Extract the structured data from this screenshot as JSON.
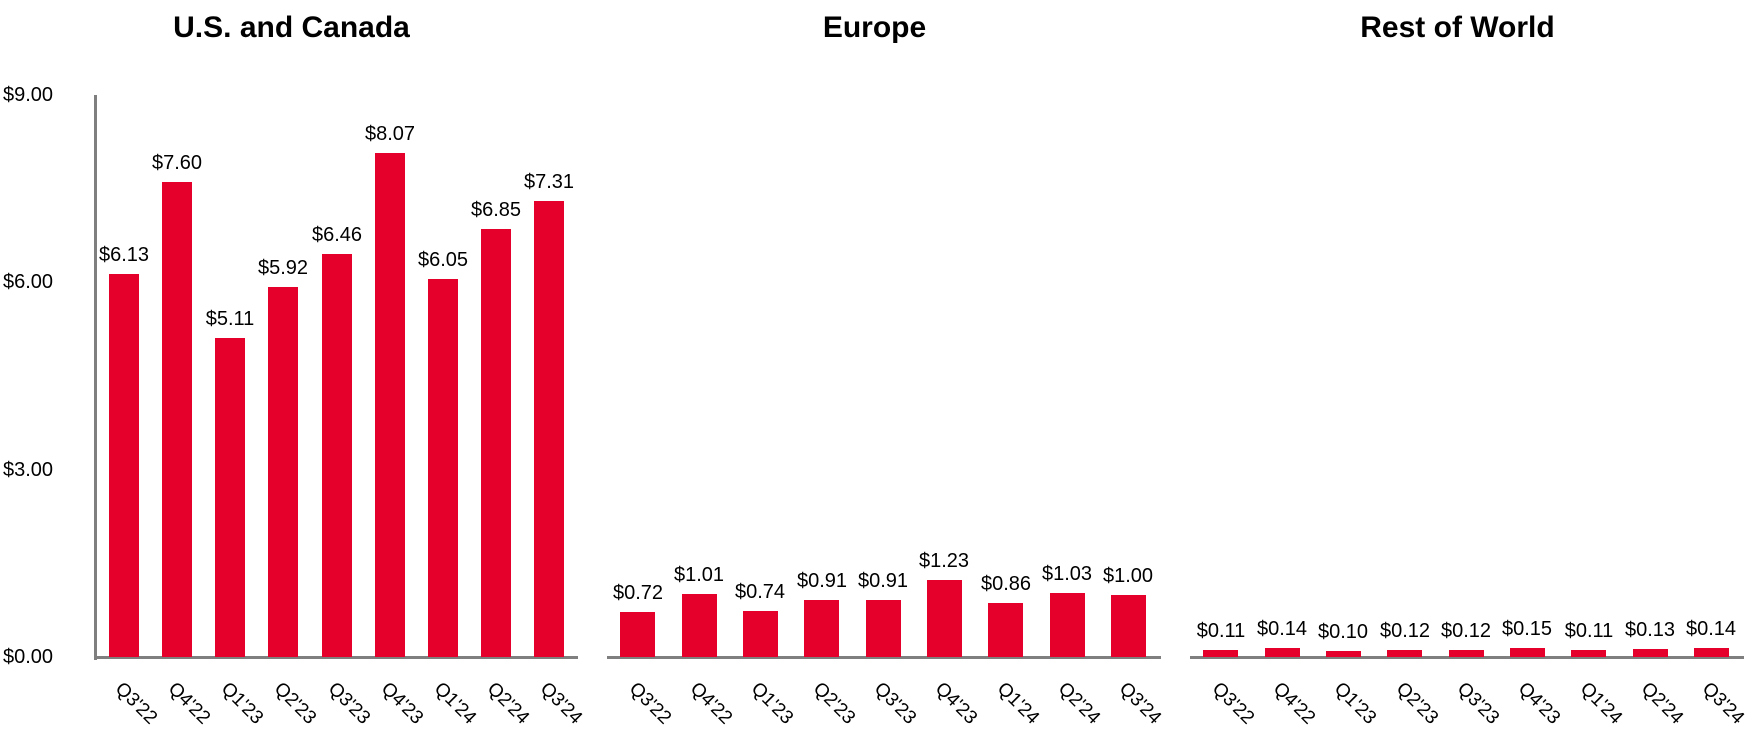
{
  "colors": {
    "bar": "#E4002B",
    "axis": "#7F7F7F",
    "text": "#000000",
    "background": "#FFFFFF"
  },
  "chart_data": [
    {
      "type": "bar",
      "title": "U.S. and Canada",
      "categories": [
        "Q3'22",
        "Q4'22",
        "Q1'23",
        "Q2'23",
        "Q3'23",
        "Q4'23",
        "Q1'24",
        "Q2'24",
        "Q3'24"
      ],
      "values": [
        6.13,
        7.6,
        5.11,
        5.92,
        6.46,
        8.07,
        6.05,
        6.85,
        7.31
      ],
      "data_labels": [
        "$6.13",
        "$7.60",
        "$5.11",
        "$5.92",
        "$6.46",
        "$8.07",
        "$6.05",
        "$6.85",
        "$7.31"
      ],
      "ylim": [
        0,
        9
      ],
      "y_axis": {
        "visible": true,
        "ticks": [
          {
            "label": "$9.00",
            "value": 9
          },
          {
            "label": "$6.00",
            "value": 6
          },
          {
            "label": "$3.00",
            "value": 3
          },
          {
            "label": "$0.00",
            "value": 0
          }
        ]
      },
      "grid": false,
      "legend": "none"
    },
    {
      "type": "bar",
      "title": "Europe",
      "categories": [
        "Q3'22",
        "Q4'22",
        "Q1'23",
        "Q2'23",
        "Q3'23",
        "Q4'23",
        "Q1'24",
        "Q2'24",
        "Q3'24"
      ],
      "values": [
        0.72,
        1.01,
        0.74,
        0.91,
        0.91,
        1.23,
        0.86,
        1.03,
        1.0
      ],
      "data_labels": [
        "$0.72",
        "$1.01",
        "$0.74",
        "$0.91",
        "$0.91",
        "$1.23",
        "$0.86",
        "$1.03",
        "$1.00"
      ],
      "ylim": [
        0,
        9
      ],
      "y_axis": {
        "visible": false,
        "ticks": []
      },
      "grid": false,
      "legend": "none"
    },
    {
      "type": "bar",
      "title": "Rest of World",
      "categories": [
        "Q3'22",
        "Q4'22",
        "Q1'23",
        "Q2'23",
        "Q3'23",
        "Q4'23",
        "Q1'24",
        "Q2'24",
        "Q3'24"
      ],
      "values": [
        0.11,
        0.14,
        0.1,
        0.12,
        0.12,
        0.15,
        0.11,
        0.13,
        0.14
      ],
      "data_labels": [
        "$0.11",
        "$0.14",
        "$0.10",
        "$0.12",
        "$0.12",
        "$0.15",
        "$0.11",
        "$0.13",
        "$0.14"
      ],
      "ylim": [
        0,
        9
      ],
      "y_axis": {
        "visible": false,
        "ticks": []
      },
      "grid": false,
      "legend": "none"
    }
  ]
}
